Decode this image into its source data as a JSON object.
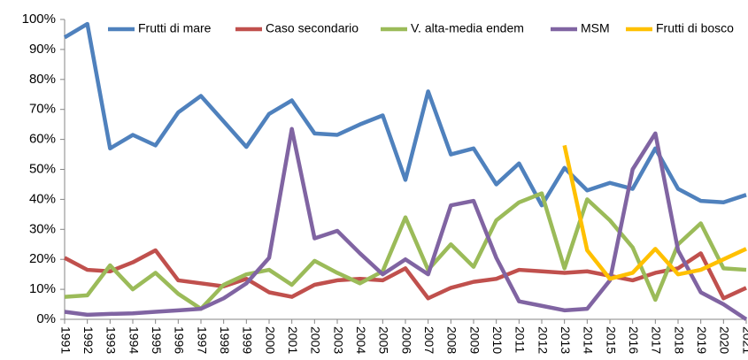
{
  "chart_data": {
    "type": "line",
    "categories": [
      "1991",
      "1992",
      "1993",
      "1994",
      "1995",
      "1996",
      "1997",
      "1998",
      "1999",
      "2000",
      "2001",
      "2002",
      "2003",
      "2004",
      "2005",
      "2006",
      "2007",
      "2008",
      "2009",
      "2010",
      "2011",
      "2012",
      "2013",
      "2014",
      "2015",
      "2016",
      "2017",
      "2018",
      "2019",
      "2020",
      "2021"
    ],
    "series": [
      {
        "name": "Frutti di mare",
        "color": "#4f81bd",
        "values": [
          94,
          98.5,
          57,
          61.5,
          58,
          69,
          74.5,
          66,
          57.5,
          68.5,
          73,
          62,
          61.5,
          65,
          68,
          46.5,
          76,
          55,
          57,
          45,
          52,
          38,
          50.5,
          43,
          45.5,
          43.5,
          57,
          43.5,
          39.5,
          39,
          41.5
        ]
      },
      {
        "name": "Caso secondario",
        "color": "#c0504d",
        "values": [
          20.5,
          16.5,
          16,
          19,
          23,
          13,
          12,
          11,
          13.5,
          9,
          7.5,
          11.5,
          13,
          13.5,
          13,
          17,
          7,
          10.5,
          12.5,
          13.5,
          16.5,
          16,
          15.5,
          16,
          14.5,
          13,
          15.5,
          17,
          22,
          7,
          10.5
        ]
      },
      {
        "name": "V. alta-media endem",
        "color": "#9bbb59",
        "values": [
          7.5,
          8,
          18,
          10,
          15.5,
          8.5,
          3.5,
          11.5,
          15,
          16.5,
          11.5,
          19.5,
          15.5,
          12,
          16,
          34,
          16.5,
          25,
          17.5,
          33,
          39,
          42,
          17,
          40,
          33,
          24,
          6.5,
          25,
          32,
          17,
          16.5
        ]
      },
      {
        "name": "MSM",
        "color": "#8064a2",
        "values": [
          2.5,
          1.5,
          1.8,
          2,
          2.5,
          3,
          3.5,
          7,
          12,
          20.5,
          63.5,
          27,
          29.5,
          22,
          15,
          20,
          15,
          38,
          39.5,
          20.5,
          6,
          4.5,
          3,
          3.5,
          13,
          50,
          62,
          23,
          9,
          5,
          0
        ]
      },
      {
        "name": "Frutti di bosco",
        "color": "#ffc000",
        "values": [
          null,
          null,
          null,
          null,
          null,
          null,
          null,
          null,
          null,
          null,
          null,
          null,
          null,
          null,
          null,
          null,
          null,
          null,
          null,
          null,
          null,
          null,
          58,
          23,
          13.5,
          15.5,
          23.5,
          15,
          16.5,
          20,
          23.5
        ]
      }
    ],
    "ylim": [
      0,
      100
    ],
    "yticks": [
      {
        "value": 0,
        "label": "0%"
      },
      {
        "value": 10,
        "label": "10%"
      },
      {
        "value": 20,
        "label": "20%"
      },
      {
        "value": 30,
        "label": "30%"
      },
      {
        "value": 40,
        "label": "40%"
      },
      {
        "value": 50,
        "label": "50%"
      },
      {
        "value": 60,
        "label": "60%"
      },
      {
        "value": 70,
        "label": "70%"
      },
      {
        "value": 80,
        "label": "80%"
      },
      {
        "value": 90,
        "label": "90%"
      },
      {
        "value": 100,
        "label": "100%"
      }
    ],
    "grid": false,
    "legend": "top"
  }
}
